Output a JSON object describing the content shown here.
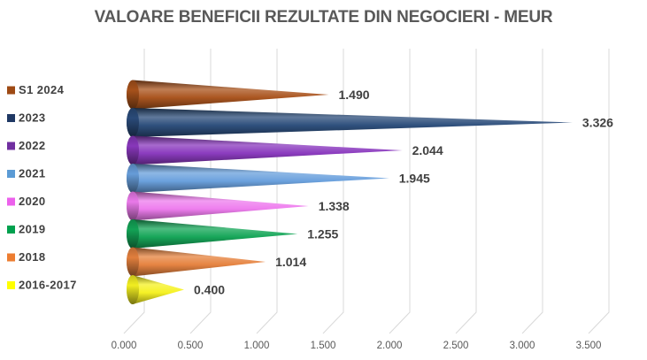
{
  "chart_data": {
    "type": "bar",
    "subtype": "3d-cone-horizontal",
    "title": "VALOARE BENEFICII REZULTATE DIN NEGOCIERI - MEUR",
    "categories": [
      "S1 2024",
      "2023",
      "2022",
      "2021",
      "2020",
      "2019",
      "2018",
      "2016-2017"
    ],
    "values": [
      1.49,
      3.326,
      2.044,
      1.945,
      1.338,
      1.255,
      1.014,
      0.4
    ],
    "data_labels": [
      "1.490",
      "3.326",
      "2.044",
      "1.945",
      "1.338",
      "1.255",
      "1.014",
      "0.400"
    ],
    "colors": [
      "#A9531C",
      "#2B4C7A",
      "#8A38BE",
      "#689FDC",
      "#EE7BEE",
      "#13A557",
      "#E5813E",
      "#F6F222"
    ],
    "legend_colors": [
      "#9E4A14",
      "#1F3864",
      "#702FA0",
      "#5B9BD5",
      "#EC61EC",
      "#00A14E",
      "#ED7D31",
      "#FFFF00"
    ],
    "xlabel": "",
    "ylabel": "",
    "xlim": [
      0,
      3.5
    ],
    "x_ticks": [
      {
        "value": 0.0,
        "label": "0.000"
      },
      {
        "value": 0.5,
        "label": "0.500"
      },
      {
        "value": 1.0,
        "label": "1.000"
      },
      {
        "value": 1.5,
        "label": "1.500"
      },
      {
        "value": 2.0,
        "label": "2.000"
      },
      {
        "value": 2.5,
        "label": "2.500"
      },
      {
        "value": 3.0,
        "label": "3.000"
      },
      {
        "value": 3.5,
        "label": "3.500"
      }
    ],
    "grid": true,
    "legend_position": "left",
    "background_color": "#FFFFFF",
    "gridline_color": "#D9D9D9",
    "text_colors": {
      "title": "#595959",
      "data_label": "#404040",
      "tick_label": "#595959",
      "legend_label": "#404040"
    }
  }
}
